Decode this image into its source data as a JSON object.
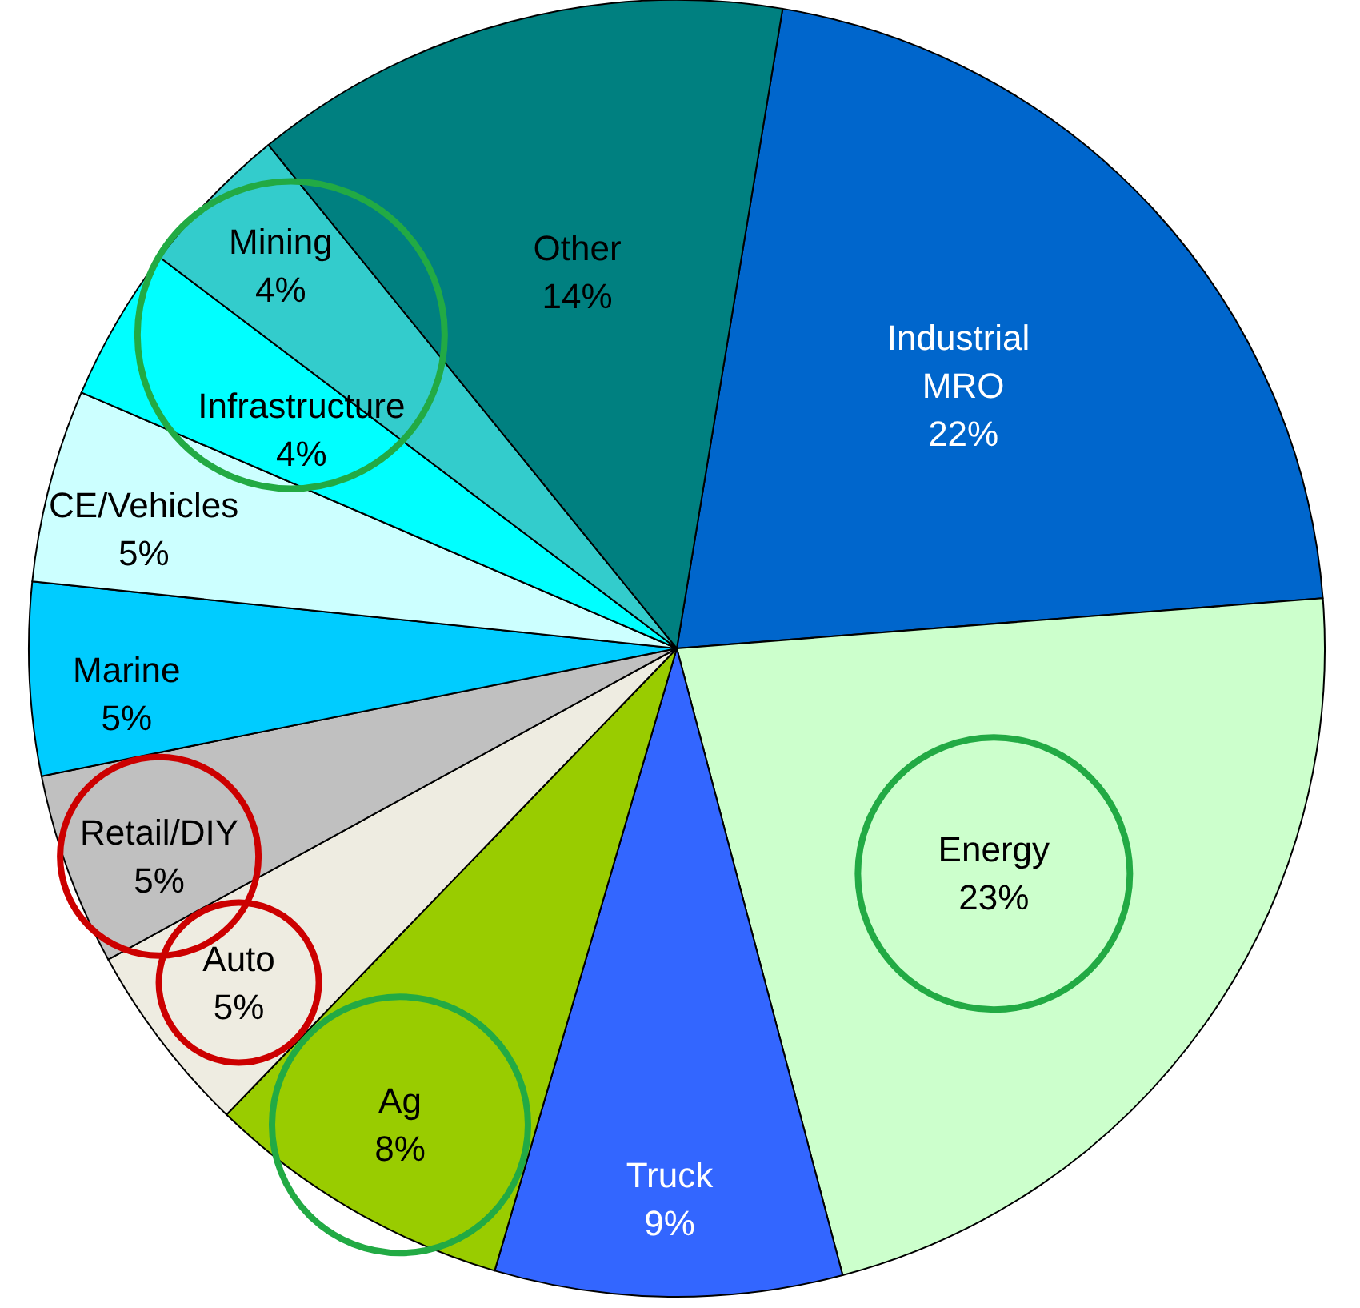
{
  "chart_data": {
    "type": "pie",
    "categories": [
      "Industrial MRO",
      "Energy",
      "Truck",
      "Ag",
      "Auto",
      "Retail/DIY",
      "Marine",
      "CE/Vehicles",
      "Infrastructure",
      "Mining",
      "Other"
    ],
    "values": [
      22,
      23,
      9,
      8,
      5,
      5,
      5,
      5,
      4,
      4,
      14
    ],
    "value_labels": [
      "22%",
      "23%",
      "9%",
      "8%",
      "5%",
      "5%",
      "5%",
      "5%",
      "4%",
      "4%",
      "14%"
    ],
    "colors": [
      "#0066cc",
      "#ccffcc",
      "#3366ff",
      "#99cc00",
      "#eeece1",
      "#c0c0c0",
      "#00ccff",
      "#ccffff",
      "#00ffff",
      "#33cccc",
      "#008080"
    ],
    "legend": false
  }
}
